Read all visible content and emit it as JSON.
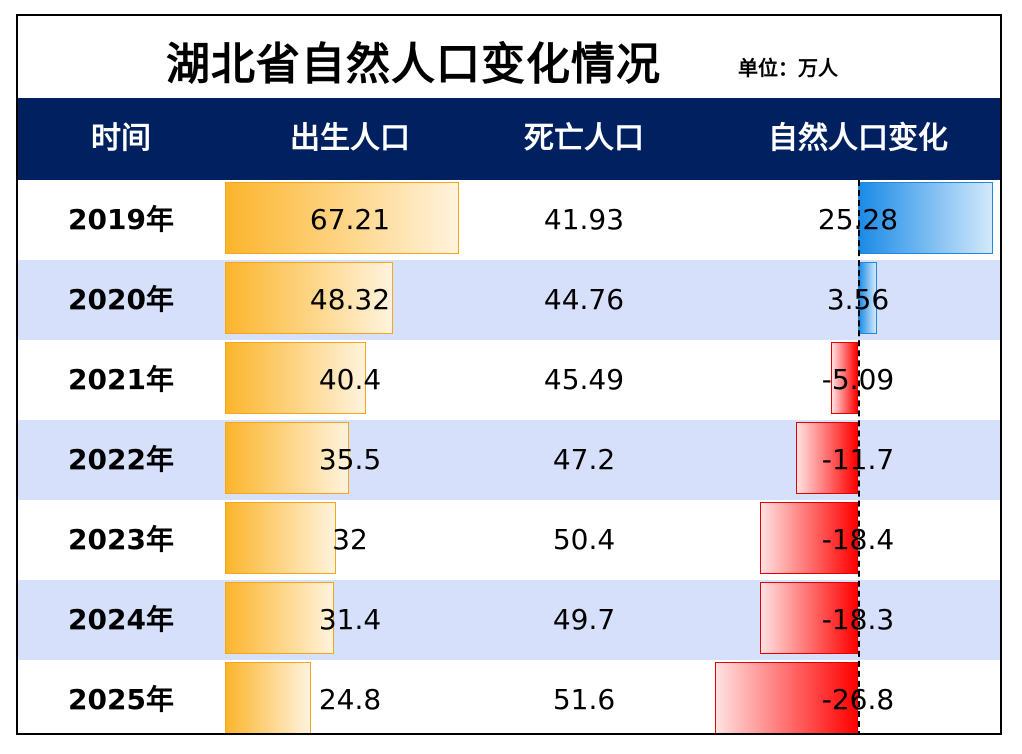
{
  "title": "湖北省自然人口变化情况",
  "unit": "单位：万人",
  "headers": {
    "time": "时间",
    "births": "出生人口",
    "deaths": "死亡人口",
    "natural_change": "自然人口变化"
  },
  "colors": {
    "header_bg": "#002060",
    "band_bg": "#d6e0fa",
    "birth_bar": "#fbb52c",
    "positive_bar": "#1a8ae6",
    "negative_bar": "#ff0000"
  },
  "chart_data": {
    "type": "table",
    "title": "湖北省自然人口变化情况",
    "unit": "万人",
    "categories": [
      "2019年",
      "2020年",
      "2021年",
      "2022年",
      "2023年",
      "2024年",
      "2025年"
    ],
    "series": [
      {
        "name": "出生人口",
        "values": [
          67.21,
          48.32,
          40.4,
          35.5,
          32,
          31.4,
          24.8
        ]
      },
      {
        "name": "死亡人口",
        "values": [
          41.93,
          44.76,
          45.49,
          47.2,
          50.4,
          49.7,
          51.6
        ]
      },
      {
        "name": "自然人口变化",
        "values": [
          25.28,
          3.56,
          -5.09,
          -11.7,
          -18.4,
          -18.3,
          -26.8
        ]
      }
    ],
    "databars": {
      "出生人口": "gradient-orange",
      "自然人口变化": "blue-positive / red-negative"
    }
  }
}
